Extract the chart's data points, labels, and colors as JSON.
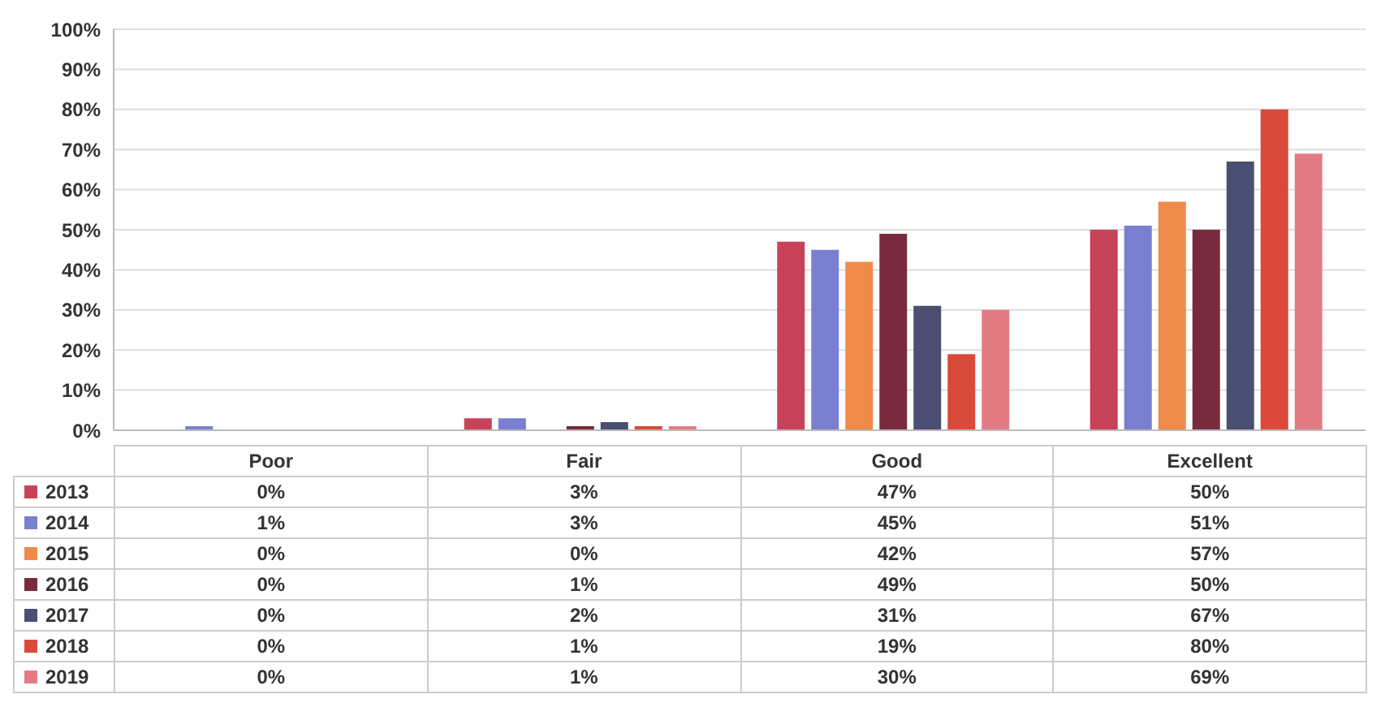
{
  "chart_data": {
    "type": "bar",
    "categories": [
      "Poor",
      "Fair",
      "Good",
      "Excellent"
    ],
    "series": [
      {
        "name": "2013",
        "color": "#c8435a",
        "values": [
          0,
          3,
          47,
          50
        ],
        "value_labels": [
          "0%",
          "3%",
          "47%",
          "50%"
        ]
      },
      {
        "name": "2014",
        "color": "#7b7fcf",
        "values": [
          1,
          3,
          45,
          51
        ],
        "value_labels": [
          "1%",
          "3%",
          "45%",
          "51%"
        ]
      },
      {
        "name": "2015",
        "color": "#f08a4b",
        "values": [
          0,
          0,
          42,
          57
        ],
        "value_labels": [
          "0%",
          "0%",
          "42%",
          "57%"
        ]
      },
      {
        "name": "2016",
        "color": "#7a2a3e",
        "values": [
          0,
          1,
          49,
          50
        ],
        "value_labels": [
          "0%",
          "1%",
          "49%",
          "50%"
        ]
      },
      {
        "name": "2017",
        "color": "#4a4e72",
        "values": [
          0,
          2,
          31,
          67
        ],
        "value_labels": [
          "0%",
          "2%",
          "31%",
          "67%"
        ]
      },
      {
        "name": "2018",
        "color": "#d94a3a",
        "values": [
          0,
          1,
          19,
          80
        ],
        "value_labels": [
          "0%",
          "1%",
          "19%",
          "80%"
        ]
      },
      {
        "name": "2019",
        "color": "#e37b85",
        "values": [
          0,
          1,
          30,
          69
        ],
        "value_labels": [
          "0%",
          "1%",
          "30%",
          "69%"
        ]
      }
    ],
    "ylim": [
      0,
      100
    ],
    "yticks": [
      {
        "value": 0,
        "label": "0%"
      },
      {
        "value": 10,
        "label": "10%"
      },
      {
        "value": 20,
        "label": "20%"
      },
      {
        "value": 30,
        "label": "30%"
      },
      {
        "value": 40,
        "label": "40%"
      },
      {
        "value": 50,
        "label": "50%"
      },
      {
        "value": 60,
        "label": "60%"
      },
      {
        "value": 70,
        "label": "70%"
      },
      {
        "value": 80,
        "label": "80%"
      },
      {
        "value": 90,
        "label": "90%"
      },
      {
        "value": 100,
        "label": "100%"
      }
    ],
    "grid": "y",
    "legend": "bottom"
  }
}
